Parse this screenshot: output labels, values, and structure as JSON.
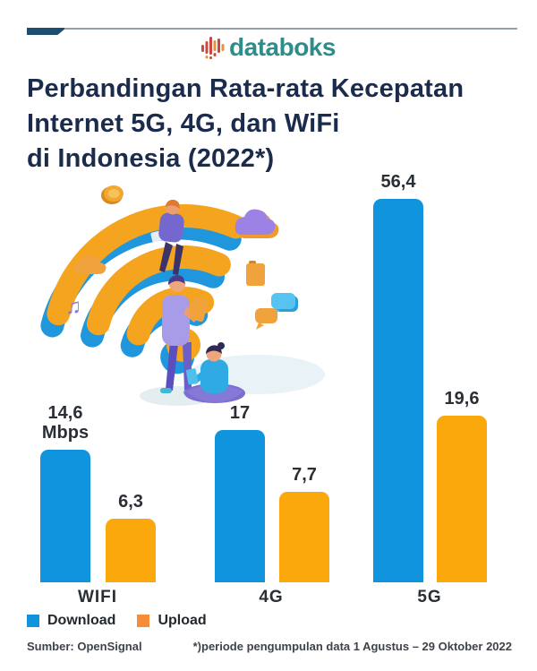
{
  "brand": {
    "logo_text": "databoks"
  },
  "title": {
    "lines": [
      "Perbandingan Rata-rata Kecepatan",
      "Internet 5G, 4G, dan WiFi",
      "di Indonesia (2022*)"
    ]
  },
  "chart_data": {
    "type": "bar",
    "title": "Perbandingan Rata-rata Kecepatan Internet 5G, 4G, dan WiFi di Indonesia (2022*)",
    "categories": [
      "WIFI",
      "4G",
      "5G"
    ],
    "series": [
      {
        "name": "Download",
        "color": "#1094DE",
        "values": [
          14.6,
          17,
          56.4
        ],
        "value_labels": [
          [
            "14,6",
            "Mbps"
          ],
          [
            "17"
          ],
          [
            "56,4"
          ]
        ]
      },
      {
        "name": "Upload",
        "color": "#FBA80C",
        "values": [
          6.3,
          7.7,
          19.6
        ],
        "value_labels": [
          [
            "6,3"
          ],
          [
            "7,7"
          ],
          [
            "19,6"
          ]
        ]
      }
    ],
    "unit": "Mbps",
    "ylim": [
      0,
      60
    ],
    "grid": false,
    "axis_lines": false,
    "legend_position": "bottom-left"
  },
  "legend": {
    "items": [
      {
        "label": "Download",
        "color": "#1094DE"
      },
      {
        "label": "Upload",
        "color": "#F68C35"
      }
    ]
  },
  "footer": {
    "source": "Sumber: OpenSignal",
    "note": "*)periode pengumpulan data 1 Agustus – 29 Oktober 2022"
  },
  "colors": {
    "title_navy": "#1B2B4B",
    "logo_teal": "#2E8D8A",
    "topline_navy": "#1D4E70",
    "topline_gray": "#98A2AC",
    "value_text": "#2A2F36",
    "download_blue": "#1094DE",
    "upload_orange": "#FBA80C"
  }
}
